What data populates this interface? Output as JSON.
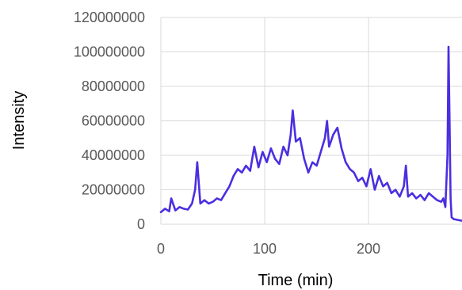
{
  "chart_data": {
    "type": "line",
    "title": "",
    "xlabel": "Time (min)",
    "ylabel": "Intensity",
    "xlim": [
      0,
      290
    ],
    "ylim": [
      0,
      120000000
    ],
    "xticks": [
      0,
      100,
      200
    ],
    "yticks": [
      0,
      20000000,
      40000000,
      60000000,
      80000000,
      100000000,
      120000000
    ],
    "grid": true,
    "legend": "none",
    "series": [
      {
        "color": "#4a2fe0",
        "x": [
          0,
          4,
          8,
          10,
          14,
          18,
          22,
          26,
          30,
          33,
          35,
          38,
          42,
          46,
          50,
          54,
          58,
          62,
          66,
          70,
          74,
          78,
          82,
          86,
          90,
          94,
          98,
          102,
          106,
          110,
          114,
          118,
          122,
          125,
          127,
          130,
          134,
          138,
          142,
          146,
          150,
          154,
          158,
          160,
          162,
          166,
          170,
          174,
          178,
          182,
          186,
          190,
          194,
          198,
          202,
          206,
          210,
          214,
          218,
          222,
          226,
          230,
          234,
          236,
          238,
          242,
          246,
          250,
          254,
          258,
          262,
          266,
          270,
          272,
          274,
          276,
          277,
          278,
          279,
          280,
          282,
          286,
          290
        ],
        "y": [
          7000000,
          9000000,
          7500000,
          15000000,
          8000000,
          10000000,
          9000000,
          8500000,
          12000000,
          20000000,
          36000000,
          12000000,
          14000000,
          12000000,
          13000000,
          15000000,
          14000000,
          18000000,
          22000000,
          28000000,
          32000000,
          30000000,
          34000000,
          31000000,
          45000000,
          33000000,
          42000000,
          36000000,
          44000000,
          38000000,
          35000000,
          45000000,
          40000000,
          52000000,
          66000000,
          48000000,
          50000000,
          38000000,
          30000000,
          36000000,
          34000000,
          42000000,
          50000000,
          60000000,
          45000000,
          52000000,
          56000000,
          44000000,
          36000000,
          32000000,
          30000000,
          25000000,
          27000000,
          22000000,
          32000000,
          20000000,
          28000000,
          22000000,
          24000000,
          18000000,
          20000000,
          16000000,
          22000000,
          34000000,
          16000000,
          18000000,
          15000000,
          17000000,
          14000000,
          18000000,
          16000000,
          14000000,
          13000000,
          15000000,
          10000000,
          40000000,
          103000000,
          60000000,
          15000000,
          4000000,
          3000000,
          2500000,
          2000000
        ]
      }
    ]
  }
}
